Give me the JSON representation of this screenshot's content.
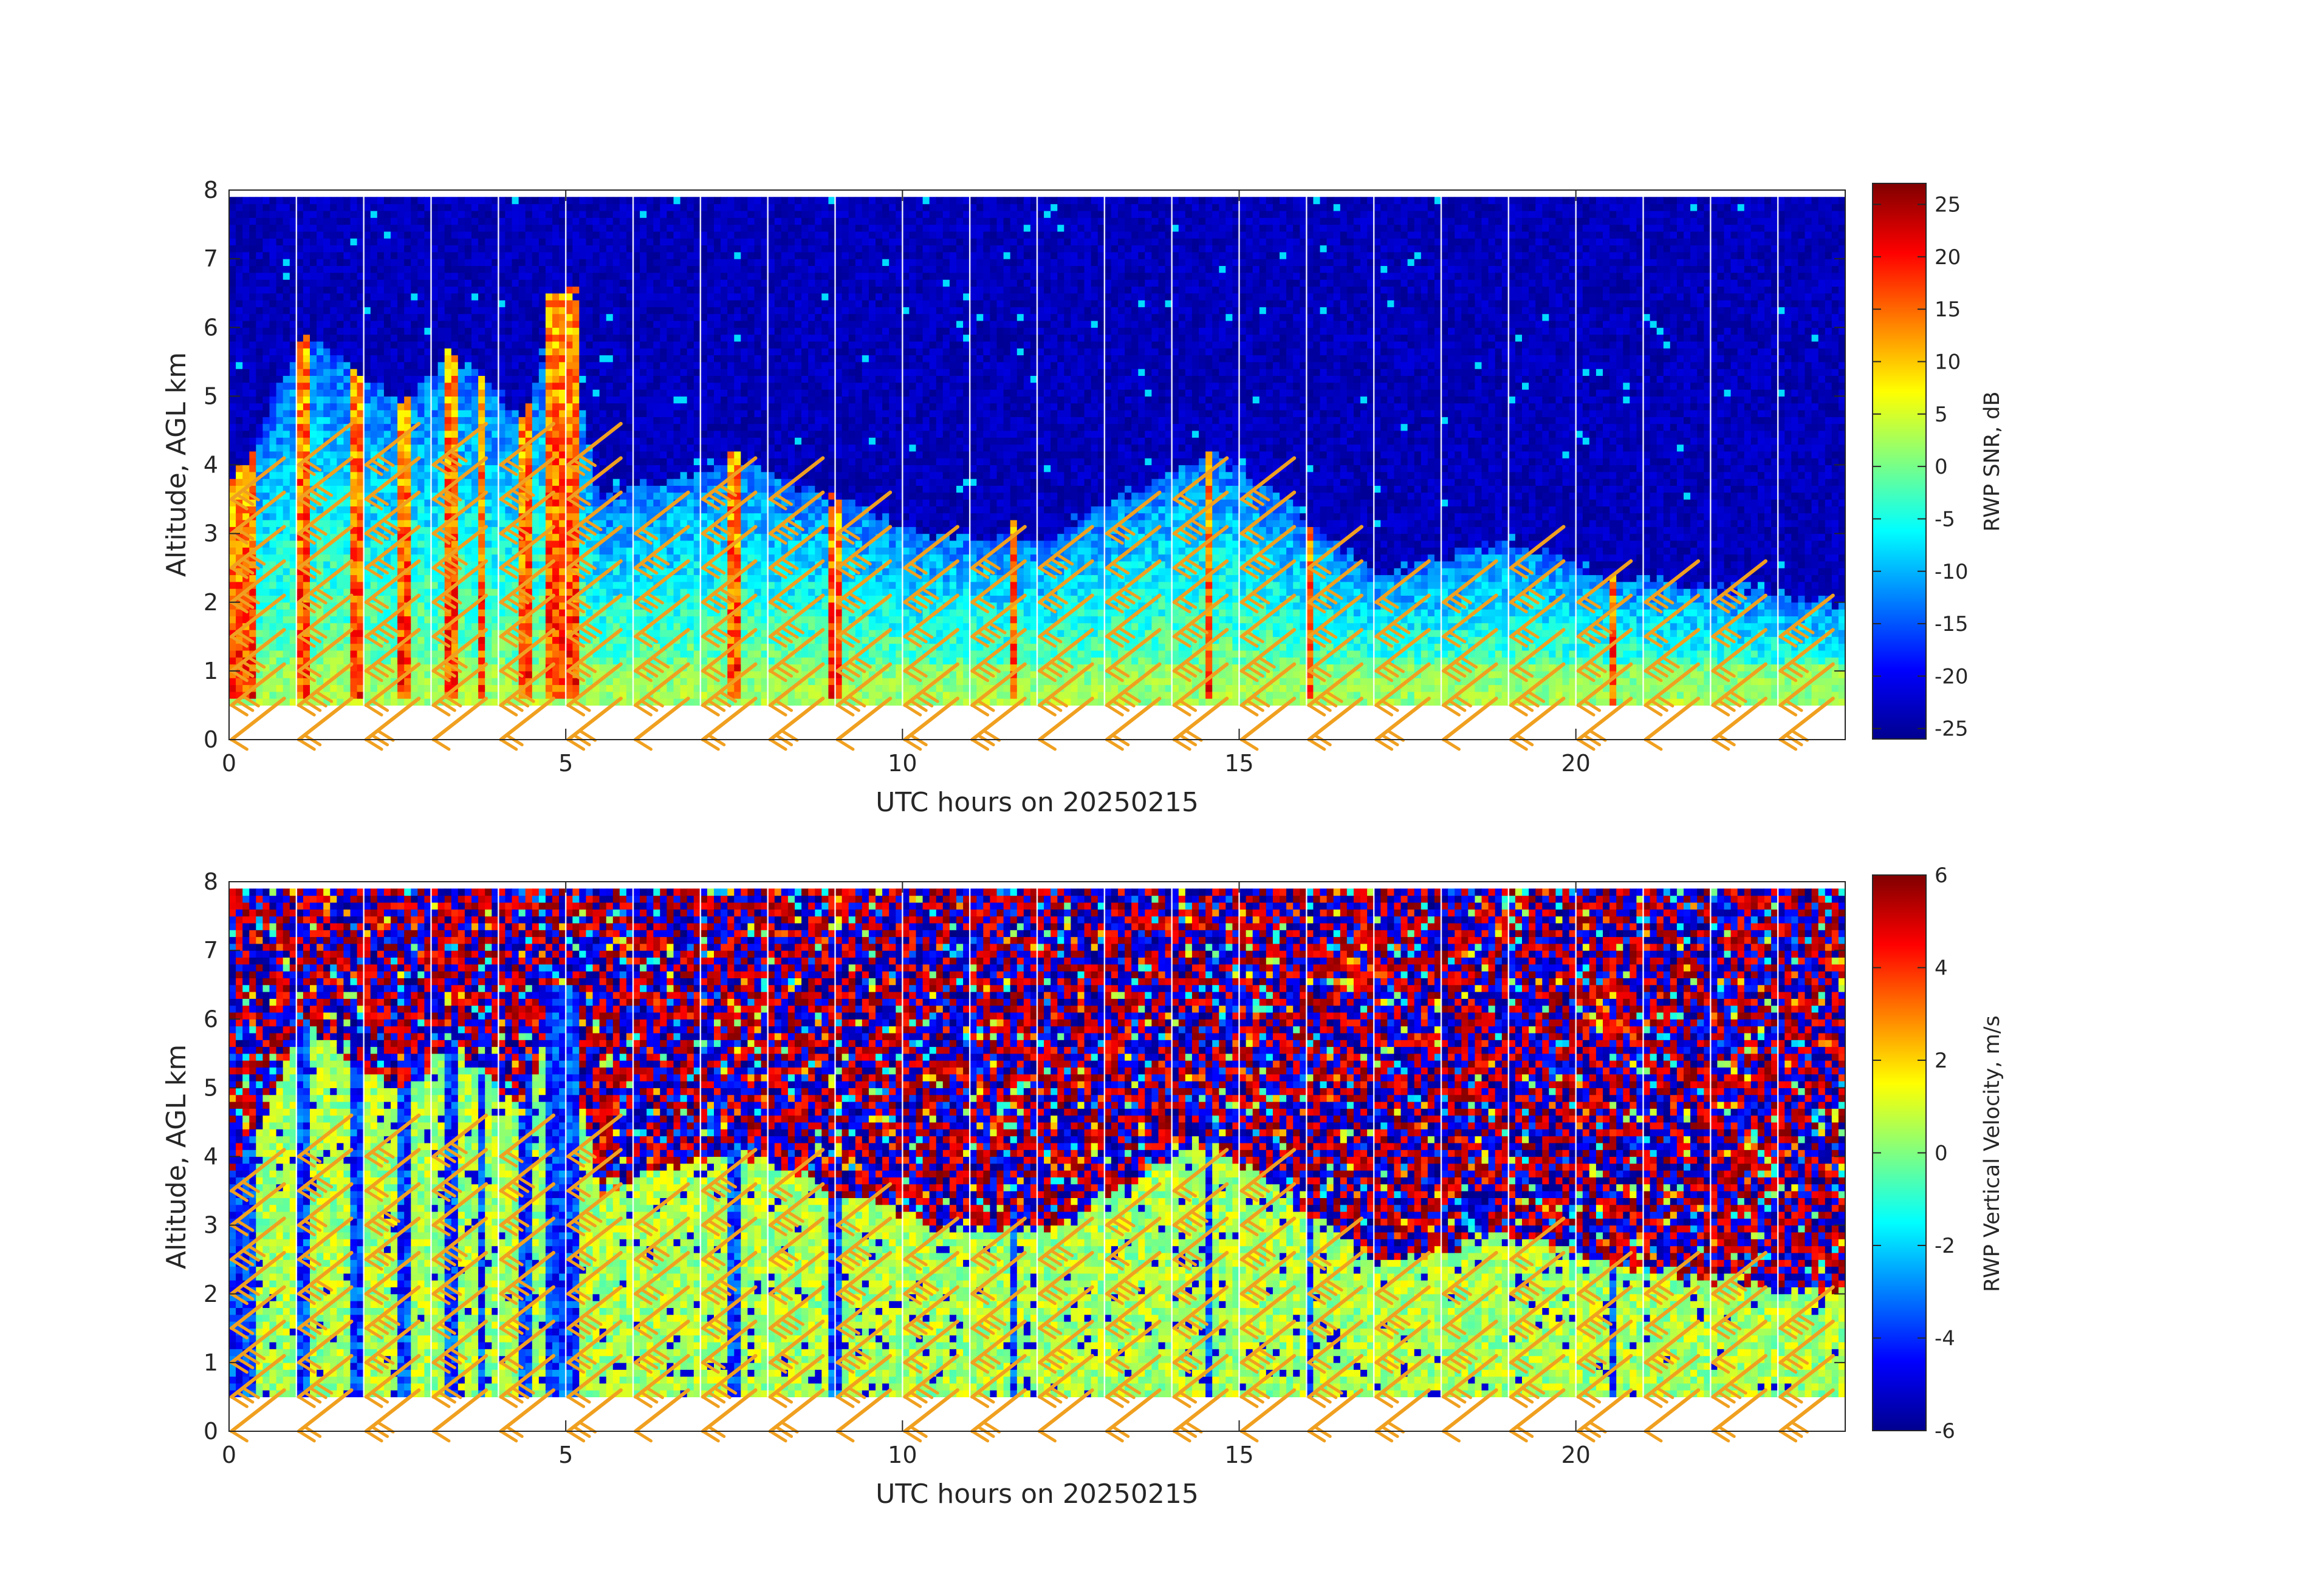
{
  "figure": {
    "background": "#ffffff",
    "panels": [
      {
        "id": "snr",
        "xlabel": "UTC hours on 20250215",
        "ylabel": "Altitude, AGL km",
        "colorbar_label": "RWP SNR, dB",
        "colorbar_ticks": [
          {
            "value": 25,
            "label": "25"
          },
          {
            "value": 20,
            "label": "20"
          },
          {
            "value": 15,
            "label": "15"
          },
          {
            "value": 10,
            "label": "10"
          },
          {
            "value": 5,
            "label": "5"
          },
          {
            "value": 0,
            "label": "0"
          },
          {
            "value": -5,
            "label": "-5"
          },
          {
            "value": -10,
            "label": "-10"
          },
          {
            "value": -15,
            "label": "-15"
          },
          {
            "value": -20,
            "label": "-20"
          },
          {
            "value": -25,
            "label": "-25"
          }
        ]
      },
      {
        "id": "vel",
        "xlabel": "UTC hours on 20250215",
        "ylabel": "Altitude, AGL km",
        "colorbar_label": "RWP Vertical Velocity, m/s",
        "colorbar_ticks": [
          {
            "value": 6,
            "label": "6"
          },
          {
            "value": 4,
            "label": "4"
          },
          {
            "value": 2,
            "label": "2"
          },
          {
            "value": 0,
            "label": "0"
          },
          {
            "value": -2,
            "label": "-2"
          },
          {
            "value": -4,
            "label": "-4"
          },
          {
            "value": -6,
            "label": "-6"
          }
        ]
      }
    ],
    "x_ticks": [
      {
        "value": 0,
        "label": "0"
      },
      {
        "value": 5,
        "label": "5"
      },
      {
        "value": 10,
        "label": "10"
      },
      {
        "value": 15,
        "label": "15"
      },
      {
        "value": 20,
        "label": "20"
      }
    ],
    "y_ticks": [
      {
        "value": 0,
        "label": "0"
      },
      {
        "value": 1,
        "label": "1"
      },
      {
        "value": 2,
        "label": "2"
      },
      {
        "value": 3,
        "label": "3"
      },
      {
        "value": 4,
        "label": "4"
      },
      {
        "value": 5,
        "label": "5"
      },
      {
        "value": 6,
        "label": "6"
      },
      {
        "value": 7,
        "label": "7"
      },
      {
        "value": 8,
        "label": "8"
      }
    ],
    "barb_color": "#f0a020"
  },
  "chart_data": [
    {
      "type": "heatmap",
      "xlabel": "UTC hours on 20250215",
      "ylabel": "Altitude, AGL km",
      "colorbar_label": "RWP SNR, dB",
      "xlim": [
        0,
        24
      ],
      "ylim": [
        0,
        8
      ],
      "clim": [
        -26,
        27
      ],
      "colormap": "jet",
      "data_altitude_range_km": [
        0.5,
        7.9
      ],
      "echo_top_km": [
        {
          "x": 0.0,
          "top": 3.9
        },
        {
          "x": 0.3,
          "top": 4.2
        },
        {
          "x": 1.1,
          "top": 6.0
        },
        {
          "x": 1.9,
          "top": 5.5
        },
        {
          "x": 2.6,
          "top": 5.0
        },
        {
          "x": 3.3,
          "top": 5.7
        },
        {
          "x": 4.4,
          "top": 4.8
        },
        {
          "x": 4.9,
          "top": 6.6
        },
        {
          "x": 5.5,
          "top": 3.6
        },
        {
          "x": 7.5,
          "top": 4.2
        },
        {
          "x": 9.0,
          "top": 3.6
        },
        {
          "x": 10.5,
          "top": 3.1
        },
        {
          "x": 12.0,
          "top": 3.0
        },
        {
          "x": 14.5,
          "top": 4.3
        },
        {
          "x": 15.5,
          "top": 3.7
        },
        {
          "x": 17.0,
          "top": 2.5
        },
        {
          "x": 19.0,
          "top": 3.0
        },
        {
          "x": 20.5,
          "top": 2.5
        },
        {
          "x": 24.0,
          "top": 2.1
        }
      ],
      "wind_barb_times_h": [
        0,
        1,
        2,
        3,
        4,
        5,
        6,
        7,
        8,
        9,
        10,
        11,
        12,
        13,
        14,
        15,
        16,
        17,
        18,
        19,
        20,
        21,
        22,
        23
      ],
      "wind_barb_altitudes_km": [
        0,
        0.5,
        1.0,
        1.5,
        2.0,
        2.5,
        3.0,
        3.5,
        4.0
      ]
    },
    {
      "type": "heatmap",
      "xlabel": "UTC hours on 20250215",
      "ylabel": "Altitude, AGL km",
      "colorbar_label": "RWP Vertical Velocity, m/s",
      "xlim": [
        0,
        24
      ],
      "ylim": [
        0,
        8
      ],
      "clim": [
        -6,
        6
      ],
      "colormap": "jet",
      "data_altitude_range_km": [
        0.5,
        7.9
      ],
      "note_values": "noise (random) above echo top; mostly -2 to 2 m/s within echo"
    }
  ]
}
